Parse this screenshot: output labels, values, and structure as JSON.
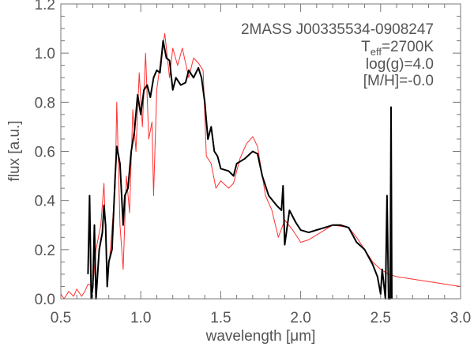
{
  "chart_data": {
    "type": "line",
    "xlabel": "wavelength [μm]",
    "ylabel": "flux [a.u.]",
    "xlim": [
      0.5,
      3.0
    ],
    "ylim": [
      0.0,
      1.2
    ],
    "xticks": [
      "0.5",
      "1.0",
      "1.5",
      "2.0",
      "2.5",
      "3.0"
    ],
    "yticks": [
      "0.0",
      "0.2",
      "0.4",
      "0.6",
      "0.8",
      "1.0",
      "1.2"
    ],
    "grid": false,
    "annotations": {
      "object": "2MASS J00335534-0908247",
      "teff_main": "T",
      "teff_sub": "eff",
      "teff_value": "=2700K",
      "logg": "log(g)=4.0",
      "metallicity": "[M/H]=-0.0"
    },
    "series": [
      {
        "color": "#ff3030",
        "x": [
          0.5,
          0.52,
          0.55,
          0.58,
          0.6,
          0.63,
          0.65,
          0.67,
          0.7,
          0.72,
          0.75,
          0.77,
          0.79,
          0.81,
          0.84,
          0.85,
          0.87,
          0.89,
          0.91,
          0.93,
          0.95,
          0.97,
          0.99,
          1.01,
          1.03,
          1.05,
          1.07,
          1.08,
          1.1,
          1.13,
          1.15,
          1.18,
          1.2,
          1.23,
          1.26,
          1.3,
          1.33,
          1.36,
          1.39,
          1.41,
          1.44,
          1.47,
          1.5,
          1.55,
          1.58,
          1.62,
          1.66,
          1.7,
          1.73,
          1.78,
          1.82,
          1.86,
          1.9,
          1.95,
          2.0,
          2.05,
          2.1,
          2.2,
          2.3,
          2.35,
          2.4,
          2.45,
          2.5,
          2.55,
          2.6,
          2.7,
          2.8,
          2.9,
          3.0
        ],
        "y": [
          0.02,
          0.0,
          0.03,
          0.01,
          0.04,
          0.01,
          0.03,
          0.06,
          0.05,
          0.2,
          0.3,
          0.47,
          0.06,
          0.2,
          0.45,
          0.8,
          0.3,
          0.12,
          0.5,
          0.35,
          0.77,
          0.6,
          0.92,
          0.7,
          1.0,
          0.65,
          0.72,
          0.42,
          0.85,
          1.0,
          1.08,
          0.9,
          1.02,
          0.95,
          1.02,
          0.9,
          0.98,
          0.96,
          0.93,
          0.58,
          0.55,
          0.45,
          0.48,
          0.45,
          0.47,
          0.57,
          0.63,
          0.66,
          0.62,
          0.42,
          0.36,
          0.25,
          0.32,
          0.28,
          0.23,
          0.24,
          0.26,
          0.3,
          0.29,
          0.25,
          0.2,
          0.15,
          0.12,
          0.1,
          0.09,
          0.08,
          0.07,
          0.06,
          0.05
        ]
      },
      {
        "color": "#000000",
        "x": [
          0.67,
          0.68,
          0.69,
          0.7,
          0.71,
          0.72,
          0.74,
          0.76,
          0.77,
          0.78,
          0.79,
          0.8,
          0.82,
          0.84,
          0.85,
          0.87,
          0.89,
          0.9,
          0.92,
          0.94,
          0.96,
          0.98,
          1.0,
          1.02,
          1.04,
          1.06,
          1.08,
          1.1,
          1.12,
          1.14,
          1.16,
          1.18,
          1.2,
          1.22,
          1.25,
          1.28,
          1.3,
          1.33,
          1.36,
          1.38,
          1.4,
          1.42,
          1.44,
          1.46,
          1.48,
          1.5,
          1.55,
          1.58,
          1.6,
          1.65,
          1.7,
          1.73,
          1.76,
          1.8,
          1.85,
          1.88,
          1.89,
          1.9,
          1.93,
          1.97,
          2.0,
          2.05,
          2.1,
          2.15,
          2.2,
          2.25,
          2.3,
          2.35,
          2.4,
          2.45,
          2.48,
          2.5,
          2.51,
          2.53,
          2.54,
          2.55,
          2.56,
          2.565,
          2.57
        ],
        "y": [
          0.1,
          0.42,
          0.0,
          0.05,
          0.3,
          0.0,
          0.2,
          0.27,
          0.38,
          0.3,
          0.05,
          0.15,
          0.2,
          0.5,
          0.62,
          0.55,
          0.3,
          0.42,
          0.45,
          0.6,
          0.68,
          0.83,
          0.75,
          0.85,
          0.87,
          0.82,
          0.9,
          0.93,
          0.92,
          1.05,
          0.98,
          0.97,
          0.85,
          0.9,
          0.87,
          0.88,
          0.93,
          0.9,
          0.94,
          0.9,
          0.8,
          0.65,
          0.7,
          0.6,
          0.58,
          0.53,
          0.52,
          0.5,
          0.55,
          0.57,
          0.6,
          0.59,
          0.5,
          0.42,
          0.38,
          0.36,
          0.46,
          0.22,
          0.36,
          0.31,
          0.28,
          0.27,
          0.28,
          0.29,
          0.3,
          0.3,
          0.29,
          0.23,
          0.2,
          0.14,
          0.09,
          0.02,
          0.12,
          0.0,
          0.42,
          0.0,
          0.0,
          0.78,
          0.0
        ]
      }
    ]
  }
}
